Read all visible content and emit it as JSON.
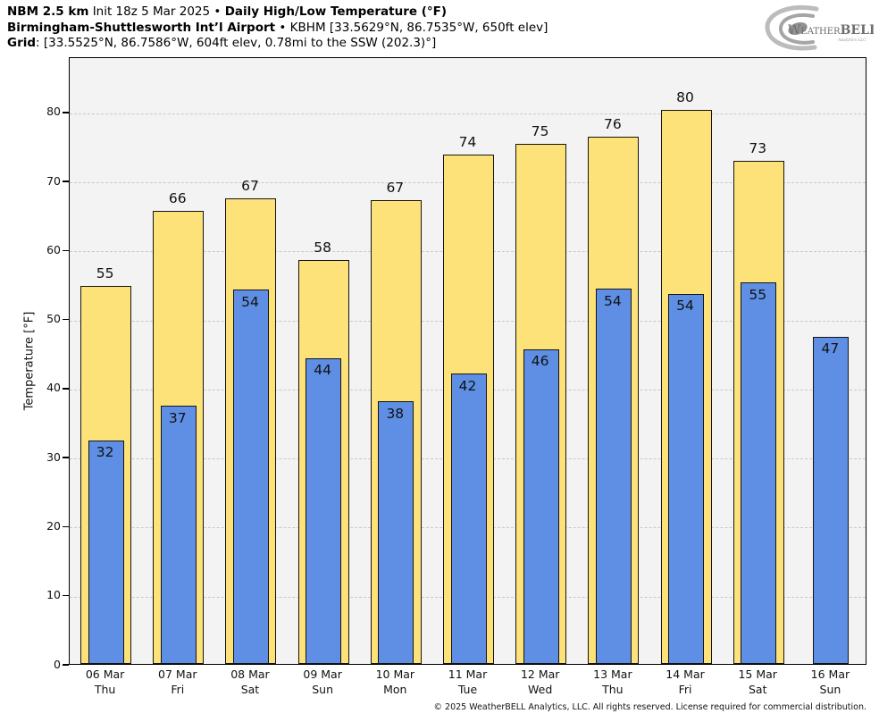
{
  "header": {
    "line1": {
      "model": "NBM 2.5 km",
      "init": "Init 18z 5 Mar 2025",
      "sep": "•",
      "product": "Daily High/Low Temperature (°F)"
    },
    "line2": {
      "station": "Birmingham-Shuttlesworth Int’l Airport",
      "sep": "•",
      "station_info": "KBHM [33.5629°N, 86.7535°W, 650ft elev]"
    },
    "line3": {
      "label": "Grid",
      "info": ": [33.5525°N, 86.7586°W, 604ft elev, 0.78mi to the SSW (202.3)°]"
    }
  },
  "logo": {
    "brand_prefix": "Weather",
    "brand_suffix": "BELL",
    "subtext": "Analytics LLC"
  },
  "footer": {
    "copyright": "© 2025 WeatherBELL Analytics, LLC. All rights reserved. License required for commercial distribution."
  },
  "chart_data": {
    "type": "bar",
    "title": "Daily High/Low Temperature (°F)",
    "xlabel": "",
    "ylabel": "Temperature [°F]",
    "ylim": [
      0,
      88
    ],
    "yticks": [
      0,
      10,
      20,
      30,
      40,
      50,
      60,
      70,
      80
    ],
    "grid": "horizontal dash-dot, light gray, plot background #f3f3f3",
    "legend_position": "none",
    "categories": [
      {
        "date": "06 Mar",
        "day": "Thu"
      },
      {
        "date": "07 Mar",
        "day": "Fri"
      },
      {
        "date": "08 Mar",
        "day": "Sat"
      },
      {
        "date": "09 Mar",
        "day": "Sun"
      },
      {
        "date": "10 Mar",
        "day": "Mon"
      },
      {
        "date": "11 Mar",
        "day": "Tue"
      },
      {
        "date": "12 Mar",
        "day": "Wed"
      },
      {
        "date": "13 Mar",
        "day": "Thu"
      },
      {
        "date": "14 Mar",
        "day": "Fri"
      },
      {
        "date": "15 Mar",
        "day": "Sat"
      },
      {
        "date": "16 Mar",
        "day": "Sun"
      }
    ],
    "series": [
      {
        "name": "Daily High",
        "color": "#fde279",
        "border_color": "#141414",
        "values": [
          54.8,
          65.6,
          67.4,
          58.5,
          67.2,
          73.8,
          75.3,
          76.4,
          80.3,
          72.8,
          null
        ],
        "labels": [
          "55",
          "66",
          "67",
          "58",
          "67",
          "74",
          "75",
          "76",
          "80",
          "73",
          null
        ]
      },
      {
        "name": "Daily Low",
        "color": "#5e8fe4",
        "border_color": "#141414",
        "values": [
          32.4,
          37.4,
          54.2,
          44.3,
          38.0,
          42.0,
          45.6,
          54.3,
          53.6,
          55.2,
          47.4
        ],
        "labels": [
          "32",
          "37",
          "54",
          "44",
          "38",
          "42",
          "46",
          "54",
          "54",
          "55",
          "47"
        ]
      }
    ]
  },
  "colors": {
    "high_bar": "#fde279",
    "low_bar": "#5e8fe4",
    "bar_border": "#141414",
    "plot_background": "#f3f3f3",
    "page_background": "#ffffff",
    "gridline": "#c9c9c9",
    "spine": "#000000",
    "logo_gray": "#a0a0a0"
  }
}
